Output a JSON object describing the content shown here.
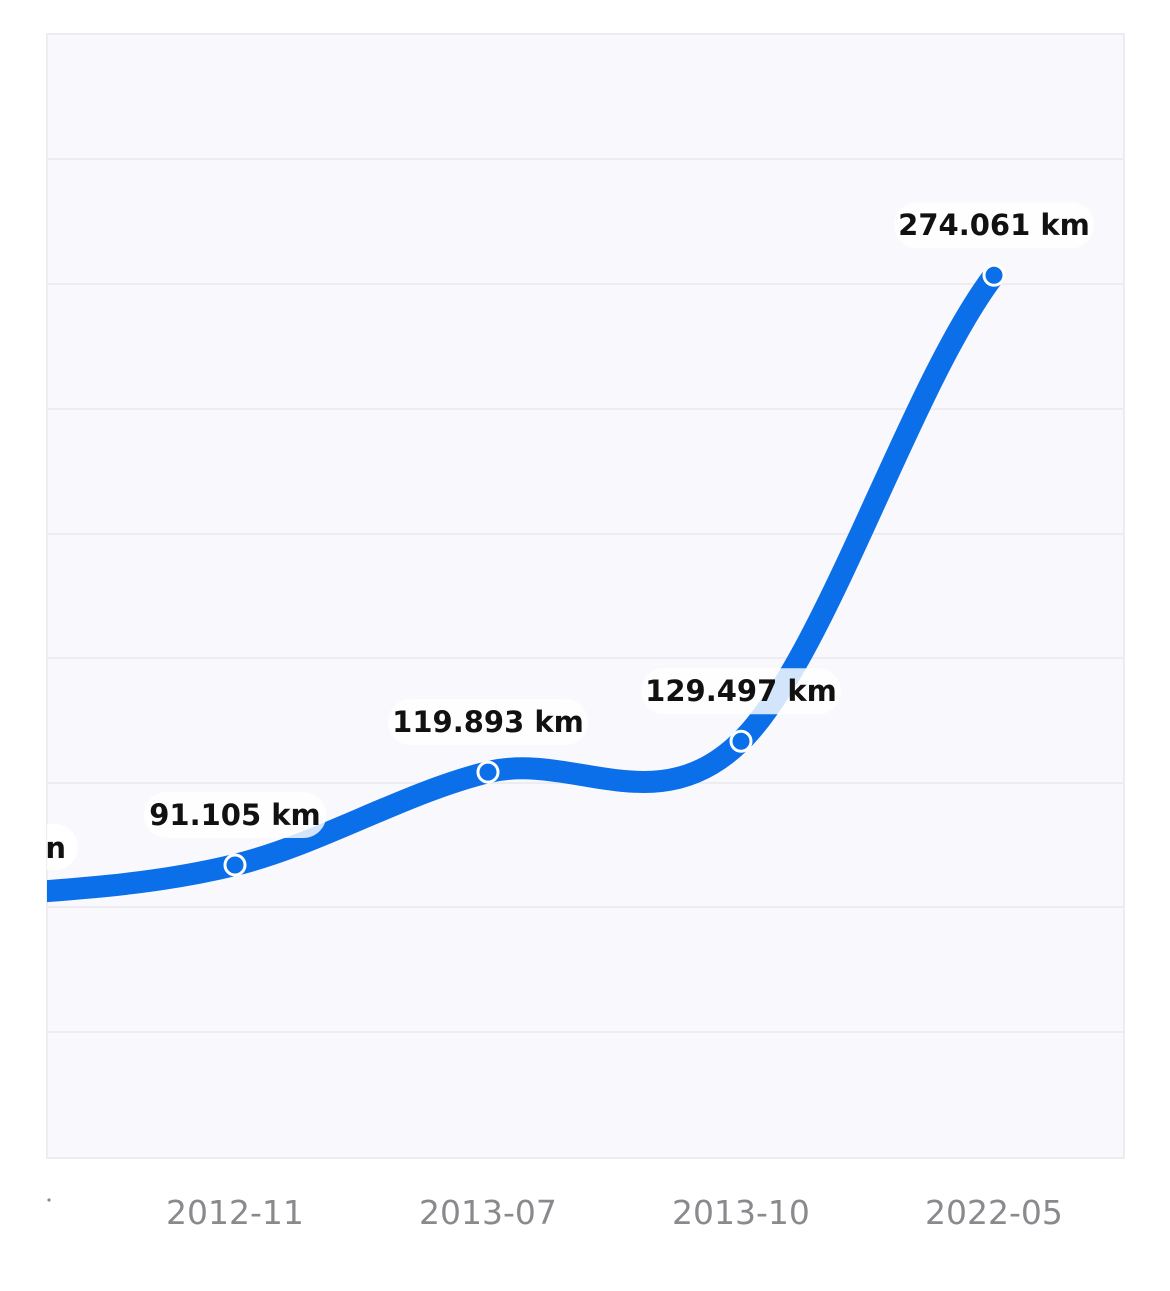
{
  "chart_data": {
    "type": "line",
    "smooth": true,
    "x": [
      "2012-11",
      "2013-07",
      "2013-10",
      "2022-05"
    ],
    "series": [
      {
        "values": [
          91.105,
          119.893,
          129.497,
          274.061
        ],
        "labels": [
          "91.105 km",
          "119.893 km",
          "129.497 km",
          "274.061 km"
        ]
      }
    ],
    "partial_left_label": "n",
    "y_unit": "km",
    "ylim": [
      0,
      280
    ],
    "grid": true,
    "line_color": "#0a6fe8",
    "background_color": "#f9f8fc",
    "tick_color": "#8a8a8e"
  }
}
